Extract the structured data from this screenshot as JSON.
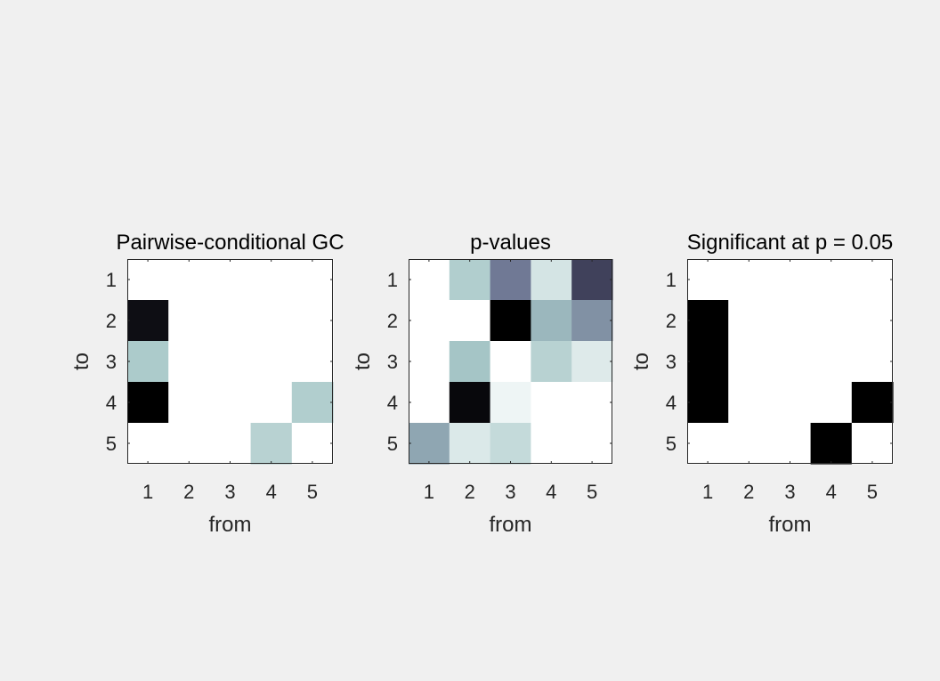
{
  "chart_data": [
    {
      "type": "heatmap",
      "title": "Pairwise-conditional GC",
      "xlabel": "from",
      "ylabel": "to",
      "x_ticks": [
        "1",
        "2",
        "3",
        "4",
        "5"
      ],
      "y_ticks": [
        "1",
        "2",
        "3",
        "4",
        "5"
      ],
      "colormap": "bone (reversed)",
      "color_range": [
        0,
        1
      ],
      "values": [
        [
          0,
          0,
          0,
          0,
          0
        ],
        [
          0.95,
          0,
          0,
          0,
          0
        ],
        [
          0.35,
          0,
          0,
          0,
          0
        ],
        [
          1.0,
          0,
          0,
          0,
          0.33
        ],
        [
          0,
          0,
          0,
          0.3,
          0
        ]
      ]
    },
    {
      "type": "heatmap",
      "title": "p-values",
      "xlabel": "from",
      "ylabel": "to",
      "x_ticks": [
        "1",
        "2",
        "3",
        "4",
        "5"
      ],
      "y_ticks": [
        "1",
        "2",
        "3",
        "4",
        "5"
      ],
      "colormap": "bone (reversed)",
      "color_range": [
        0,
        1
      ],
      "values": [
        [
          0,
          0.33,
          0.6,
          0.18,
          0.77
        ],
        [
          0,
          0,
          1.0,
          0.42,
          0.53
        ],
        [
          0,
          0.38,
          0,
          0.3,
          0.14
        ],
        [
          0,
          0.97,
          0.07,
          0,
          0
        ],
        [
          0.47,
          0.15,
          0.25,
          0,
          0
        ]
      ]
    },
    {
      "type": "heatmap",
      "title": "Significant at p = 0.05",
      "xlabel": "from",
      "ylabel": "to",
      "x_ticks": [
        "1",
        "2",
        "3",
        "4",
        "5"
      ],
      "y_ticks": [
        "1",
        "2",
        "3",
        "4",
        "5"
      ],
      "colormap": "gray (reversed)",
      "color_range": [
        0,
        1
      ],
      "values": [
        [
          0,
          0,
          0,
          0,
          0
        ],
        [
          1,
          0,
          0,
          0,
          0
        ],
        [
          1,
          0,
          0,
          0,
          0
        ],
        [
          1,
          0,
          0,
          0,
          1
        ],
        [
          0,
          0,
          0,
          1,
          0
        ]
      ]
    }
  ]
}
